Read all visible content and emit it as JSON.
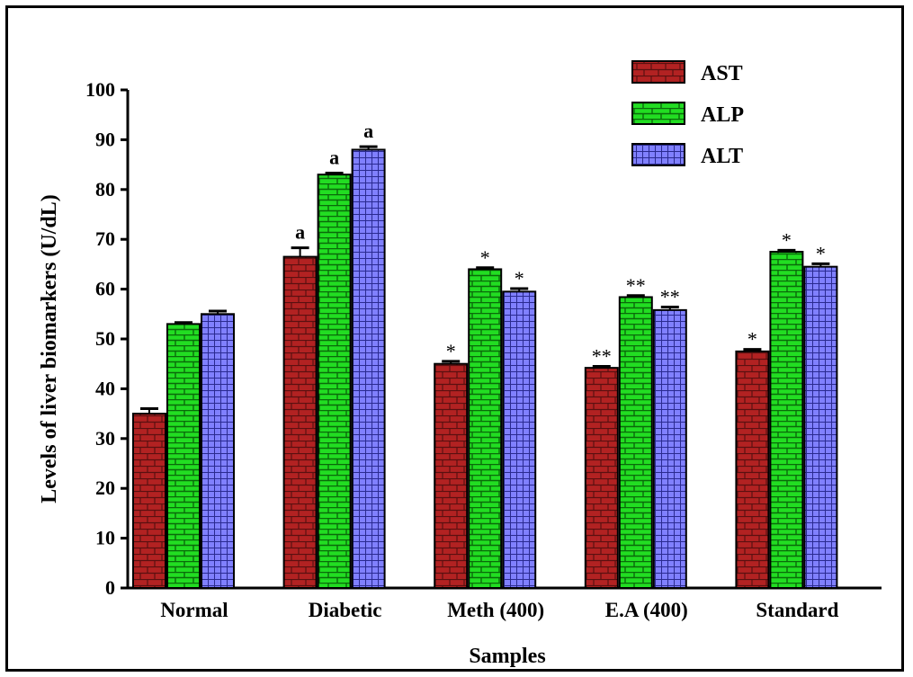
{
  "chart_data": {
    "type": "bar",
    "title": "",
    "xlabel": "Samples",
    "ylabel": "Levels of liver biomarkers (U/dL)",
    "ylim": [
      0,
      100
    ],
    "yticks": [
      "0",
      "10",
      "20",
      "30",
      "40",
      "50",
      "60",
      "70",
      "80",
      "90",
      "100"
    ],
    "categories": [
      "Normal",
      "Diabetic",
      "Meth (400)",
      "E.A (400)",
      "Standard"
    ],
    "legend_position": "top-right",
    "grid": false,
    "series": [
      {
        "name": "AST",
        "color": "#b22222",
        "pattern": "brick",
        "values": [
          35,
          66.5,
          45,
          44.2,
          47.5
        ],
        "errors": [
          1.0,
          1.8,
          0.5,
          0.3,
          0.4
        ],
        "annotations": [
          "",
          "a",
          "*",
          "**",
          "*"
        ]
      },
      {
        "name": "ALP",
        "color": "#22dd22",
        "pattern": "horizontal-brick",
        "values": [
          53,
          83,
          64,
          58.4,
          67.5
        ],
        "errors": [
          0.3,
          0.3,
          0.3,
          0.3,
          0.3
        ],
        "annotations": [
          "",
          "a",
          "*",
          "**",
          "*"
        ]
      },
      {
        "name": "ALT",
        "color": "#7b7bff",
        "pattern": "grid",
        "values": [
          55,
          88,
          59.5,
          55.8,
          64.5
        ],
        "errors": [
          0.6,
          0.6,
          0.6,
          0.6,
          0.6
        ],
        "annotations": [
          "",
          "a",
          "*",
          "**",
          "*"
        ]
      }
    ]
  }
}
